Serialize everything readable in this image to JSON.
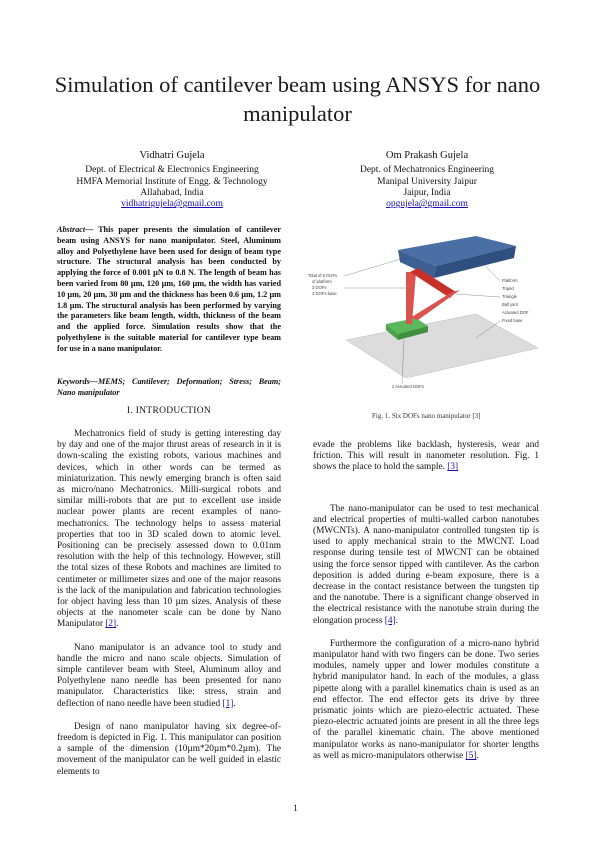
{
  "paper": {
    "title": "Simulation of cantilever beam using ANSYS for nano manipulator",
    "authors": [
      {
        "name": "Vidhatri Gujela",
        "dept": "Dept. of Electrical & Electronics Engineering",
        "institute": "HMFA Memorial Institute of Engg. & Technology",
        "location": "Allahabad, India",
        "email": "vidhatrigujela@gmail.com"
      },
      {
        "name": "Om Prakash Gujela",
        "dept": "Dept. of Mechatronics Engineering",
        "institute": "Manipal University Jaipur",
        "location": "Jaipur, India",
        "email": "opgujela@gmail.com"
      }
    ],
    "abstract_lead": "Abstract",
    "abstract_text": "— This paper presents the simulation of cantilever beam using ANSYS for nano manipulator. Steel, Aluminum alloy and Polyethylene have been used for design of beam type structure. The structural analysis has been conducted by applying the force of 0.001 µN to 0.8 N. The length of beam has been varied from 80 µm, 120 µm, 160 µm, the width has varied 10 µm, 20 µm, 30 µm and the thickness has been 0.6 µm, 1.2 µm 1.8 µm. The structural analysis has been performed by varying the parameters like beam length, width, thickness of the beam and the applied force. Simulation results show that the polyethylene is the suitable material for cantilever type beam for use in a nano manipulator.",
    "keywords": "Keywords—MEMS; Cantilever; Deformation; Stress; Beam; Nano manipulator",
    "section_title": "I.      INTRODUCTION",
    "left_paragraphs": [
      {
        "text": "Mechatronics field of study is getting interesting day by day and one of the major thrust areas of research in it is down-scaling the existing robots, various machines and devices, which in other words can be termed as miniaturization. This newly emerging branch is often said as micro/nano Mechatronics. Milli-surgical robots and similar milli-robots that are put to excellent use inside nuclear power plants are recent examples of nano-mechatronics. The technology helps to assess material properties that too in 3D scaled down to atomic level. Positioning can be precisely assessed down to 0.01nm resolution with the help of this technology. However, still the total sizes of these Robots and machines are limited to centimeter or millimeter sizes and one of the major reasons is the lack of the manipulation and fabrication technologies for object having less than 10 µm sizes. Analysis of these objects at the nanometer scale can be done by Nano Manipulator ",
        "cite": "[2]",
        "after": "."
      },
      {
        "text": "Nano manipulator is an advance tool to study and handle the micro and nano scale objects. Simulation of simple cantilever beam with Steel, Aluminum alloy and Polyethylene nano needle has been presented for nano manipulator. Characteristics like: stress, strain and deflection of nano needle have been studied ",
        "cite": "[1]",
        "after": "."
      },
      {
        "text": "Design of nano manipulator having six degree-of-freedom is depicted in Fig. 1. This manipulator can position a sample of the dimension (10µm*20µm*0.2µm). The movement of the manipulator can be well guided in elastic elements to",
        "cite": "",
        "after": ""
      }
    ],
    "right_paragraphs": [
      {
        "text": "evade the problems like backlash, hysteresis, wear and friction. This will result in nanometer resolution. Fig. 1 shows the place to hold the sample. ",
        "cite": "[3]",
        "after": ""
      },
      {
        "text": "The nano-manipulator can be used to test mechanical and electrical properties of multi-walled carbon nanotubes (MWCNTs). A nano-manipulator controlled tungsten tip is used to apply mechanical strain to the MWCNT. Load response during tensile test of MWCNT can be obtained using the force sensor tipped with cantilever. As the carbon deposition is added during e-beam exposure, there is a decrease in the contact resistance between the tungsten tip and the nanotube. There is a significant change observed in the electrical resistance with the nanotube strain during the elongation process ",
        "cite": "[4]",
        "after": "."
      },
      {
        "text": "Furthermore the configuration of a micro-nano hybrid manipulator hand with two fingers can be done. Two series modules, namely upper and lower modules constitute a hybrid manipulator hand. In each of the modules, a glass pipette along with a parallel kinematics chain is used as an end effector. The end effector gets its drive by three prismatic joints which are piezo-electric actuated. These piezo-electric actuated joints are present in all the three legs of the parallel kinematic chain. The above mentioned manipulator works as nano-manipulator for shorter lengths as well as micro-manipulators otherwise ",
        "cite": "[5]",
        "after": "."
      }
    ],
    "figure": {
      "caption": "Fig. 1. Six DOFs nano manipulator [3]",
      "labels_left": [
        "Total of 6 DOFs",
        "of platform",
        "3 DOFs",
        "3 DOFs base"
      ],
      "labels_right": [
        "Platform",
        "Tripod",
        "Triangle",
        "Ball joint",
        "Actuated DOF",
        "Fixed base"
      ],
      "label_bottom": "2 Actuated DOFs",
      "colors": {
        "platform": "#4a6fa5",
        "legs": "#d9534f",
        "base": "#5cb85c"
      }
    },
    "page_number": "1"
  }
}
